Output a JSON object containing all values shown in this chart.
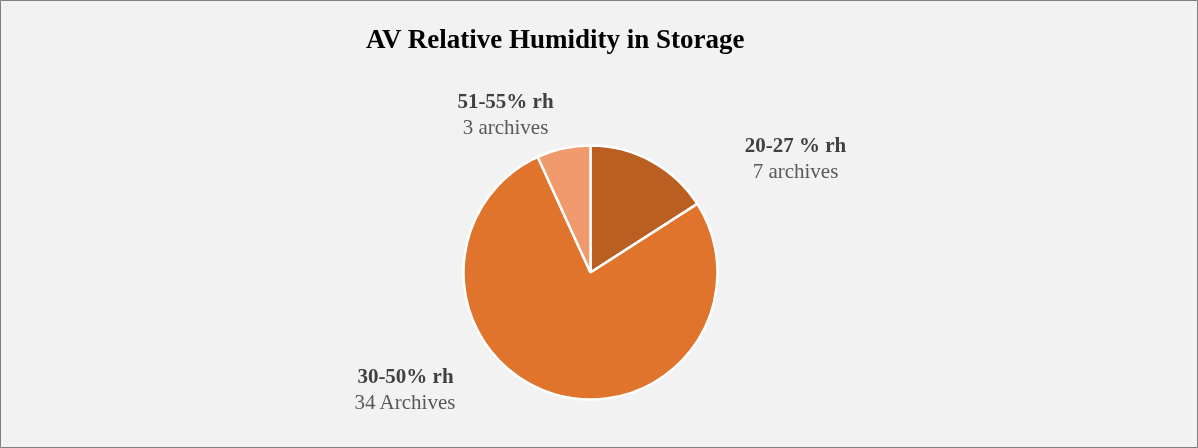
{
  "chart_data": {
    "type": "pie",
    "title": "AV Relative Humidity in Storage",
    "categories": [
      "20-27 % rh",
      "30-50% rh",
      "51-55% rh"
    ],
    "values": [
      7,
      34,
      3
    ],
    "value_labels": [
      "7 archives",
      "34 Archives",
      "3 archives"
    ],
    "colors": [
      "#b95f22",
      "#e0742c",
      "#f0996c"
    ]
  }
}
